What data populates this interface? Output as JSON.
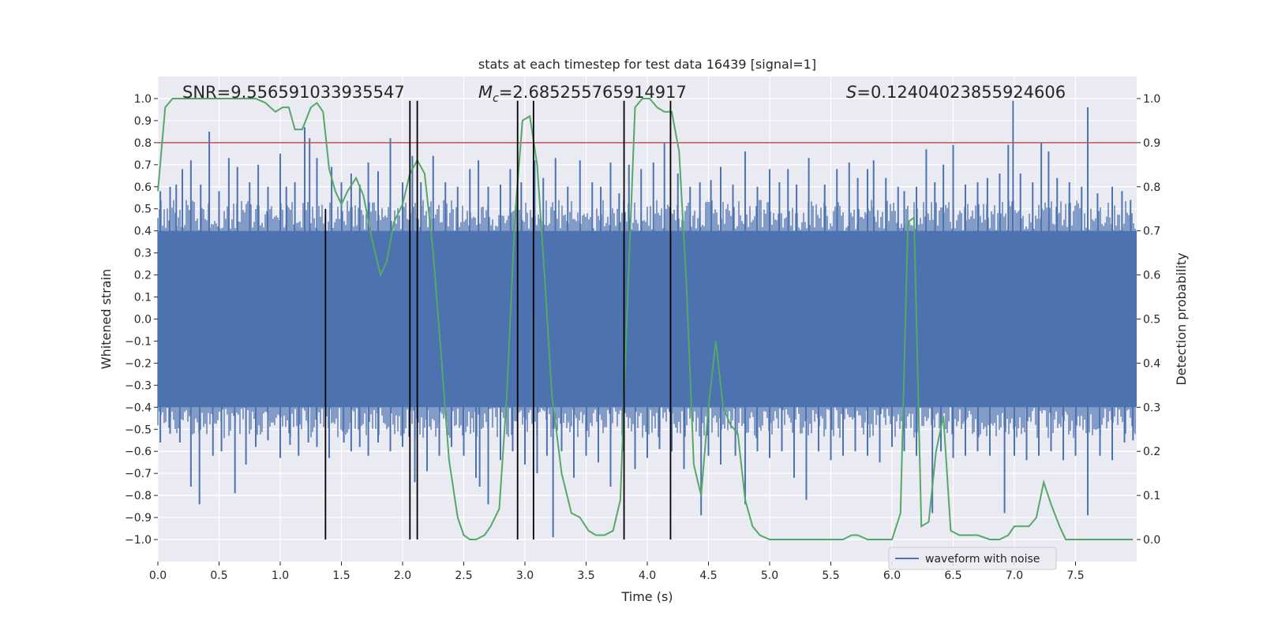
{
  "chart_data": {
    "type": "line",
    "title": "stats at each timestep for test data 16439 [signal=1]",
    "xlabel": "Time (s)",
    "ylabel": "Whitened strain",
    "y2label": "Detection probability",
    "xlim": [
      0.0,
      8.0
    ],
    "ylim": [
      -1.1,
      1.1
    ],
    "y2lim": [
      -0.05,
      1.05
    ],
    "xticks": [
      "0.0",
      "0.5",
      "1.0",
      "1.5",
      "2.0",
      "2.5",
      "3.0",
      "3.5",
      "4.0",
      "4.5",
      "5.0",
      "5.5",
      "6.0",
      "6.5",
      "7.0",
      "7.5"
    ],
    "xtick_values": [
      0.0,
      0.5,
      1.0,
      1.5,
      2.0,
      2.5,
      3.0,
      3.5,
      4.0,
      4.5,
      5.0,
      5.5,
      6.0,
      6.5,
      7.0,
      7.5
    ],
    "yticks": [
      "1.0",
      "0.9",
      "0.8",
      "0.7",
      "0.6",
      "0.5",
      "0.4",
      "0.3",
      "0.2",
      "0.1",
      "0.0",
      "−0.1",
      "−0.2",
      "−0.3",
      "−0.4",
      "−0.5",
      "−0.6",
      "−0.7",
      "−0.8",
      "−0.9",
      "−1.0"
    ],
    "ytick_values": [
      1.0,
      0.9,
      0.8,
      0.7,
      0.6,
      0.5,
      0.4,
      0.3,
      0.2,
      0.1,
      0.0,
      -0.1,
      -0.2,
      -0.3,
      -0.4,
      -0.5,
      -0.6,
      -0.7,
      -0.8,
      -0.9,
      -1.0
    ],
    "y2ticks": [
      "1.0",
      "0.9",
      "0.8",
      "0.7",
      "0.6",
      "0.5",
      "0.4",
      "0.3",
      "0.2",
      "0.1",
      "0.0"
    ],
    "y2tick_values": [
      1.0,
      0.9,
      0.8,
      0.7,
      0.6,
      0.5,
      0.4,
      0.3,
      0.2,
      0.1,
      0.0
    ],
    "grid": true,
    "legend": {
      "placement": "lower-right",
      "entries": [
        "waveform with noise"
      ]
    },
    "annotations": {
      "snr": "SNR=9.556591033935547",
      "mc_symbol": "M",
      "mc_sub": "c",
      "mc_value": "=2.685255765914917",
      "s_symbol": "S",
      "s_value": "=0.12404023855924606"
    },
    "threshold": {
      "value": 0.9,
      "axis": "y2",
      "color": "#c44e52"
    },
    "vertical_lines": [
      {
        "x": 1.37,
        "ymin": -1.0,
        "ymax": 0.5
      },
      {
        "x": 2.06,
        "ymin": -1.0,
        "ymax": 0.99
      },
      {
        "x": 2.12,
        "ymin": -1.0,
        "ymax": 0.99
      },
      {
        "x": 2.94,
        "ymin": -1.0,
        "ymax": 0.99
      },
      {
        "x": 3.07,
        "ymin": -1.0,
        "ymax": 0.99
      },
      {
        "x": 3.81,
        "ymin": -1.0,
        "ymax": 0.99
      },
      {
        "x": 4.19,
        "ymin": -1.0,
        "ymax": 0.99
      }
    ],
    "series": [
      {
        "name": "waveform with noise",
        "color": "#4c72b0",
        "axis": "y",
        "envelope": {
          "upper": 0.4,
          "lower": -0.4
        },
        "spikes": [
          [
            0.02,
            0.58
          ],
          [
            0.1,
            0.6
          ],
          [
            0.15,
            0.61
          ],
          [
            0.2,
            0.68
          ],
          [
            0.27,
            0.72
          ],
          [
            0.35,
            0.61
          ],
          [
            0.42,
            0.85
          ],
          [
            0.5,
            0.58
          ],
          [
            0.58,
            0.73
          ],
          [
            0.65,
            0.69
          ],
          [
            0.75,
            0.62
          ],
          [
            0.82,
            0.7
          ],
          [
            0.9,
            0.6
          ],
          [
            1.0,
            0.75
          ],
          [
            1.05,
            0.6
          ],
          [
            1.12,
            0.62
          ],
          [
            1.2,
            0.87
          ],
          [
            1.24,
            0.82
          ],
          [
            1.3,
            0.73
          ],
          [
            1.42,
            0.69
          ],
          [
            1.5,
            0.62
          ],
          [
            1.58,
            0.66
          ],
          [
            1.65,
            0.61
          ],
          [
            1.72,
            0.71
          ],
          [
            1.8,
            0.67
          ],
          [
            1.9,
            0.82
          ],
          [
            2.0,
            0.62
          ],
          [
            2.08,
            0.74
          ],
          [
            2.15,
            0.62
          ],
          [
            2.25,
            0.74
          ],
          [
            2.35,
            0.62
          ],
          [
            2.45,
            0.6
          ],
          [
            2.55,
            0.68
          ],
          [
            2.62,
            0.72
          ],
          [
            2.7,
            0.6
          ],
          [
            2.8,
            0.61
          ],
          [
            2.88,
            0.68
          ],
          [
            2.97,
            0.62
          ],
          [
            3.08,
            0.72
          ],
          [
            3.15,
            0.64
          ],
          [
            3.25,
            0.73
          ],
          [
            3.35,
            0.6
          ],
          [
            3.45,
            0.72
          ],
          [
            3.55,
            0.62
          ],
          [
            3.62,
            0.6
          ],
          [
            3.7,
            0.71
          ],
          [
            3.77,
            0.57
          ],
          [
            3.85,
            0.7
          ],
          [
            3.95,
            0.68
          ],
          [
            4.05,
            0.71
          ],
          [
            4.14,
            0.8
          ],
          [
            4.25,
            0.66
          ],
          [
            4.35,
            0.6
          ],
          [
            4.43,
            0.62
          ],
          [
            4.52,
            0.63
          ],
          [
            4.6,
            0.69
          ],
          [
            4.7,
            0.61
          ],
          [
            4.8,
            0.76
          ],
          [
            4.9,
            0.6
          ],
          [
            5.0,
            0.68
          ],
          [
            5.08,
            0.62
          ],
          [
            5.15,
            0.68
          ],
          [
            5.22,
            0.61
          ],
          [
            5.32,
            0.73
          ],
          [
            5.45,
            0.61
          ],
          [
            5.55,
            0.68
          ],
          [
            5.65,
            0.71
          ],
          [
            5.72,
            0.64
          ],
          [
            5.8,
            0.68
          ],
          [
            5.85,
            0.72
          ],
          [
            5.95,
            0.64
          ],
          [
            6.05,
            0.6
          ],
          [
            6.1,
            0.58
          ],
          [
            6.2,
            0.6
          ],
          [
            6.28,
            0.77
          ],
          [
            6.35,
            0.62
          ],
          [
            6.42,
            0.7
          ],
          [
            6.5,
            0.79
          ],
          [
            6.6,
            0.61
          ],
          [
            6.7,
            0.62
          ],
          [
            6.78,
            0.64
          ],
          [
            6.88,
            0.66
          ],
          [
            6.95,
            0.79
          ],
          [
            6.99,
            0.99
          ],
          [
            7.05,
            0.66
          ],
          [
            7.15,
            0.62
          ],
          [
            7.22,
            0.8
          ],
          [
            7.28,
            0.76
          ],
          [
            7.35,
            0.64
          ],
          [
            7.45,
            0.62
          ],
          [
            7.55,
            0.6
          ],
          [
            7.6,
            0.96
          ],
          [
            7.68,
            0.57
          ],
          [
            7.8,
            0.6
          ],
          [
            7.88,
            0.58
          ],
          [
            7.95,
            0.54
          ],
          [
            0.02,
            -0.56
          ],
          [
            0.1,
            -0.52
          ],
          [
            0.18,
            -0.56
          ],
          [
            0.27,
            -0.76
          ],
          [
            0.34,
            -0.84
          ],
          [
            0.45,
            -0.62
          ],
          [
            0.52,
            -0.6
          ],
          [
            0.63,
            -0.79
          ],
          [
            0.72,
            -0.66
          ],
          [
            0.8,
            -0.58
          ],
          [
            0.9,
            -0.55
          ],
          [
            1.0,
            -0.63
          ],
          [
            1.08,
            -0.57
          ],
          [
            1.15,
            -0.62
          ],
          [
            1.23,
            -0.56
          ],
          [
            1.3,
            -0.58
          ],
          [
            1.4,
            -0.63
          ],
          [
            1.52,
            -0.56
          ],
          [
            1.58,
            -0.6
          ],
          [
            1.65,
            -0.58
          ],
          [
            1.72,
            -0.62
          ],
          [
            1.8,
            -0.56
          ],
          [
            1.9,
            -0.6
          ],
          [
            2.0,
            -0.58
          ],
          [
            2.1,
            -0.74
          ],
          [
            2.2,
            -0.69
          ],
          [
            2.3,
            -0.62
          ],
          [
            2.4,
            -0.58
          ],
          [
            2.5,
            -0.62
          ],
          [
            2.6,
            -0.72
          ],
          [
            2.63,
            -0.76
          ],
          [
            2.7,
            -0.84
          ],
          [
            2.8,
            -0.64
          ],
          [
            2.9,
            -0.6
          ],
          [
            3.0,
            -0.66
          ],
          [
            3.1,
            -0.7
          ],
          [
            3.18,
            -0.62
          ],
          [
            3.23,
            -0.99
          ],
          [
            3.3,
            -0.6
          ],
          [
            3.4,
            -0.72
          ],
          [
            3.5,
            -0.62
          ],
          [
            3.6,
            -0.65
          ],
          [
            3.7,
            -0.76
          ],
          [
            3.8,
            -0.6
          ],
          [
            3.9,
            -0.68
          ],
          [
            4.0,
            -0.63
          ],
          [
            4.1,
            -0.59
          ],
          [
            4.2,
            -0.6
          ],
          [
            4.3,
            -0.68
          ],
          [
            4.44,
            -0.89
          ],
          [
            4.5,
            -0.62
          ],
          [
            4.6,
            -0.66
          ],
          [
            4.72,
            -0.62
          ],
          [
            4.8,
            -0.84
          ],
          [
            4.9,
            -0.6
          ],
          [
            5.0,
            -0.63
          ],
          [
            5.1,
            -0.6
          ],
          [
            5.2,
            -0.72
          ],
          [
            5.3,
            -0.82
          ],
          [
            5.4,
            -0.6
          ],
          [
            5.5,
            -0.64
          ],
          [
            5.6,
            -0.62
          ],
          [
            5.7,
            -0.6
          ],
          [
            5.8,
            -0.62
          ],
          [
            5.9,
            -0.65
          ],
          [
            6.0,
            -0.58
          ],
          [
            6.1,
            -0.6
          ],
          [
            6.2,
            -0.62
          ],
          [
            6.33,
            -0.88
          ],
          [
            6.4,
            -0.6
          ],
          [
            6.5,
            -0.63
          ],
          [
            6.6,
            -0.62
          ],
          [
            6.7,
            -0.6
          ],
          [
            6.8,
            -0.62
          ],
          [
            6.92,
            -0.88
          ],
          [
            7.0,
            -0.62
          ],
          [
            7.1,
            -0.64
          ],
          [
            7.2,
            -0.62
          ],
          [
            7.3,
            -0.6
          ],
          [
            7.4,
            -0.64
          ],
          [
            7.5,
            -0.62
          ],
          [
            7.6,
            -0.89
          ],
          [
            7.7,
            -0.62
          ],
          [
            7.8,
            -0.64
          ],
          [
            7.9,
            -0.56
          ],
          [
            7.97,
            -0.55
          ]
        ]
      },
      {
        "name": "",
        "color": "#55a868",
        "axis": "y2",
        "x": [
          0.0,
          0.06,
          0.12,
          0.2,
          0.3,
          0.4,
          0.5,
          0.6,
          0.7,
          0.8,
          0.88,
          0.96,
          1.02,
          1.07,
          1.12,
          1.18,
          1.25,
          1.3,
          1.35,
          1.4,
          1.45,
          1.5,
          1.55,
          1.62,
          1.68,
          1.75,
          1.82,
          1.87,
          1.93,
          2.0,
          2.06,
          2.12,
          2.18,
          2.25,
          2.32,
          2.38,
          2.45,
          2.5,
          2.55,
          2.6,
          2.67,
          2.72,
          2.79,
          2.85,
          2.92,
          2.98,
          3.04,
          3.1,
          3.16,
          3.22,
          3.3,
          3.38,
          3.45,
          3.52,
          3.58,
          3.65,
          3.72,
          3.78,
          3.84,
          3.9,
          3.96,
          4.02,
          4.08,
          4.14,
          4.2,
          4.26,
          4.32,
          4.38,
          4.44,
          4.5,
          4.56,
          4.62,
          4.68,
          4.74,
          4.8,
          4.86,
          4.92,
          5.0,
          5.1,
          5.2,
          5.3,
          5.4,
          5.5,
          5.6,
          5.67,
          5.72,
          5.8,
          5.87,
          5.95,
          6.0,
          6.07,
          6.13,
          6.18,
          6.24,
          6.3,
          6.36,
          6.42,
          6.48,
          6.55,
          6.62,
          6.7,
          6.8,
          6.88,
          6.95,
          7.0,
          7.06,
          7.12,
          7.18,
          7.24,
          7.3,
          7.37,
          7.42,
          7.5,
          7.6,
          7.7,
          7.8,
          7.9,
          7.97
        ],
        "y": [
          0.79,
          0.98,
          1.0,
          1.0,
          1.0,
          1.0,
          1.0,
          1.0,
          1.0,
          1.0,
          0.99,
          0.97,
          0.98,
          0.98,
          0.93,
          0.93,
          0.98,
          0.99,
          0.97,
          0.84,
          0.79,
          0.76,
          0.79,
          0.82,
          0.78,
          0.68,
          0.6,
          0.63,
          0.72,
          0.76,
          0.83,
          0.86,
          0.83,
          0.65,
          0.4,
          0.18,
          0.05,
          0.01,
          0.0,
          0.0,
          0.01,
          0.03,
          0.07,
          0.32,
          0.74,
          0.95,
          0.96,
          0.85,
          0.6,
          0.33,
          0.15,
          0.06,
          0.05,
          0.02,
          0.01,
          0.01,
          0.02,
          0.09,
          0.55,
          0.98,
          1.0,
          1.0,
          0.98,
          0.97,
          0.97,
          0.88,
          0.58,
          0.17,
          0.1,
          0.3,
          0.45,
          0.3,
          0.26,
          0.24,
          0.09,
          0.03,
          0.01,
          0.0,
          0.0,
          0.0,
          0.0,
          0.0,
          0.0,
          0.0,
          0.01,
          0.01,
          0.0,
          0.0,
          0.0,
          0.0,
          0.06,
          0.72,
          0.73,
          0.03,
          0.04,
          0.2,
          0.28,
          0.02,
          0.01,
          0.01,
          0.01,
          0.0,
          0.0,
          0.01,
          0.03,
          0.03,
          0.03,
          0.05,
          0.13,
          0.08,
          0.03,
          0.0,
          0.0,
          0.0,
          0.0,
          0.0,
          0.0,
          0.0
        ]
      }
    ]
  }
}
